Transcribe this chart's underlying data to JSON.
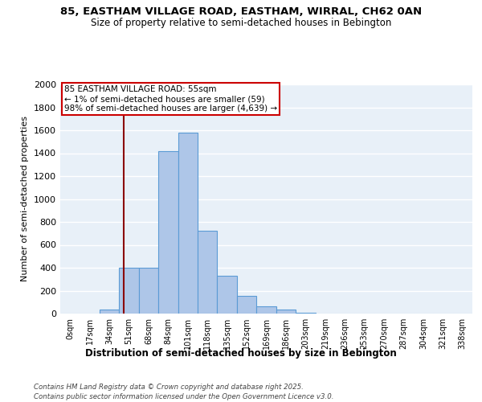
{
  "title_line1": "85, EASTHAM VILLAGE ROAD, EASTHAM, WIRRAL, CH62 0AN",
  "title_line2": "Size of property relative to semi-detached houses in Bebington",
  "xlabel": "Distribution of semi-detached houses by size in Bebington",
  "ylabel": "Number of semi-detached properties",
  "bar_labels": [
    "0sqm",
    "17sqm",
    "34sqm",
    "51sqm",
    "68sqm",
    "84sqm",
    "101sqm",
    "118sqm",
    "135sqm",
    "152sqm",
    "169sqm",
    "186sqm",
    "203sqm",
    "219sqm",
    "236sqm",
    "253sqm",
    "270sqm",
    "287sqm",
    "304sqm",
    "321sqm",
    "338sqm"
  ],
  "bar_values": [
    0,
    0,
    35,
    400,
    400,
    1420,
    1580,
    720,
    330,
    155,
    60,
    35,
    5,
    0,
    0,
    0,
    0,
    0,
    0,
    0,
    0
  ],
  "bar_color": "#aec6e8",
  "bar_edgecolor": "#5b9bd5",
  "background_color": "#e8f0f8",
  "grid_color": "#d0d8e8",
  "vline_color": "#8b0000",
  "annotation_text": "85 EASTHAM VILLAGE ROAD: 55sqm\n← 1% of semi-detached houses are smaller (59)\n98% of semi-detached houses are larger (4,639) →",
  "annotation_box_color": "#ffffff",
  "annotation_box_edgecolor": "#cc0000",
  "footer_text": "Contains HM Land Registry data © Crown copyright and database right 2025.\nContains public sector information licensed under the Open Government Licence v3.0.",
  "ylim": [
    0,
    2000
  ],
  "yticks": [
    0,
    200,
    400,
    600,
    800,
    1000,
    1200,
    1400,
    1600,
    1800,
    2000
  ]
}
